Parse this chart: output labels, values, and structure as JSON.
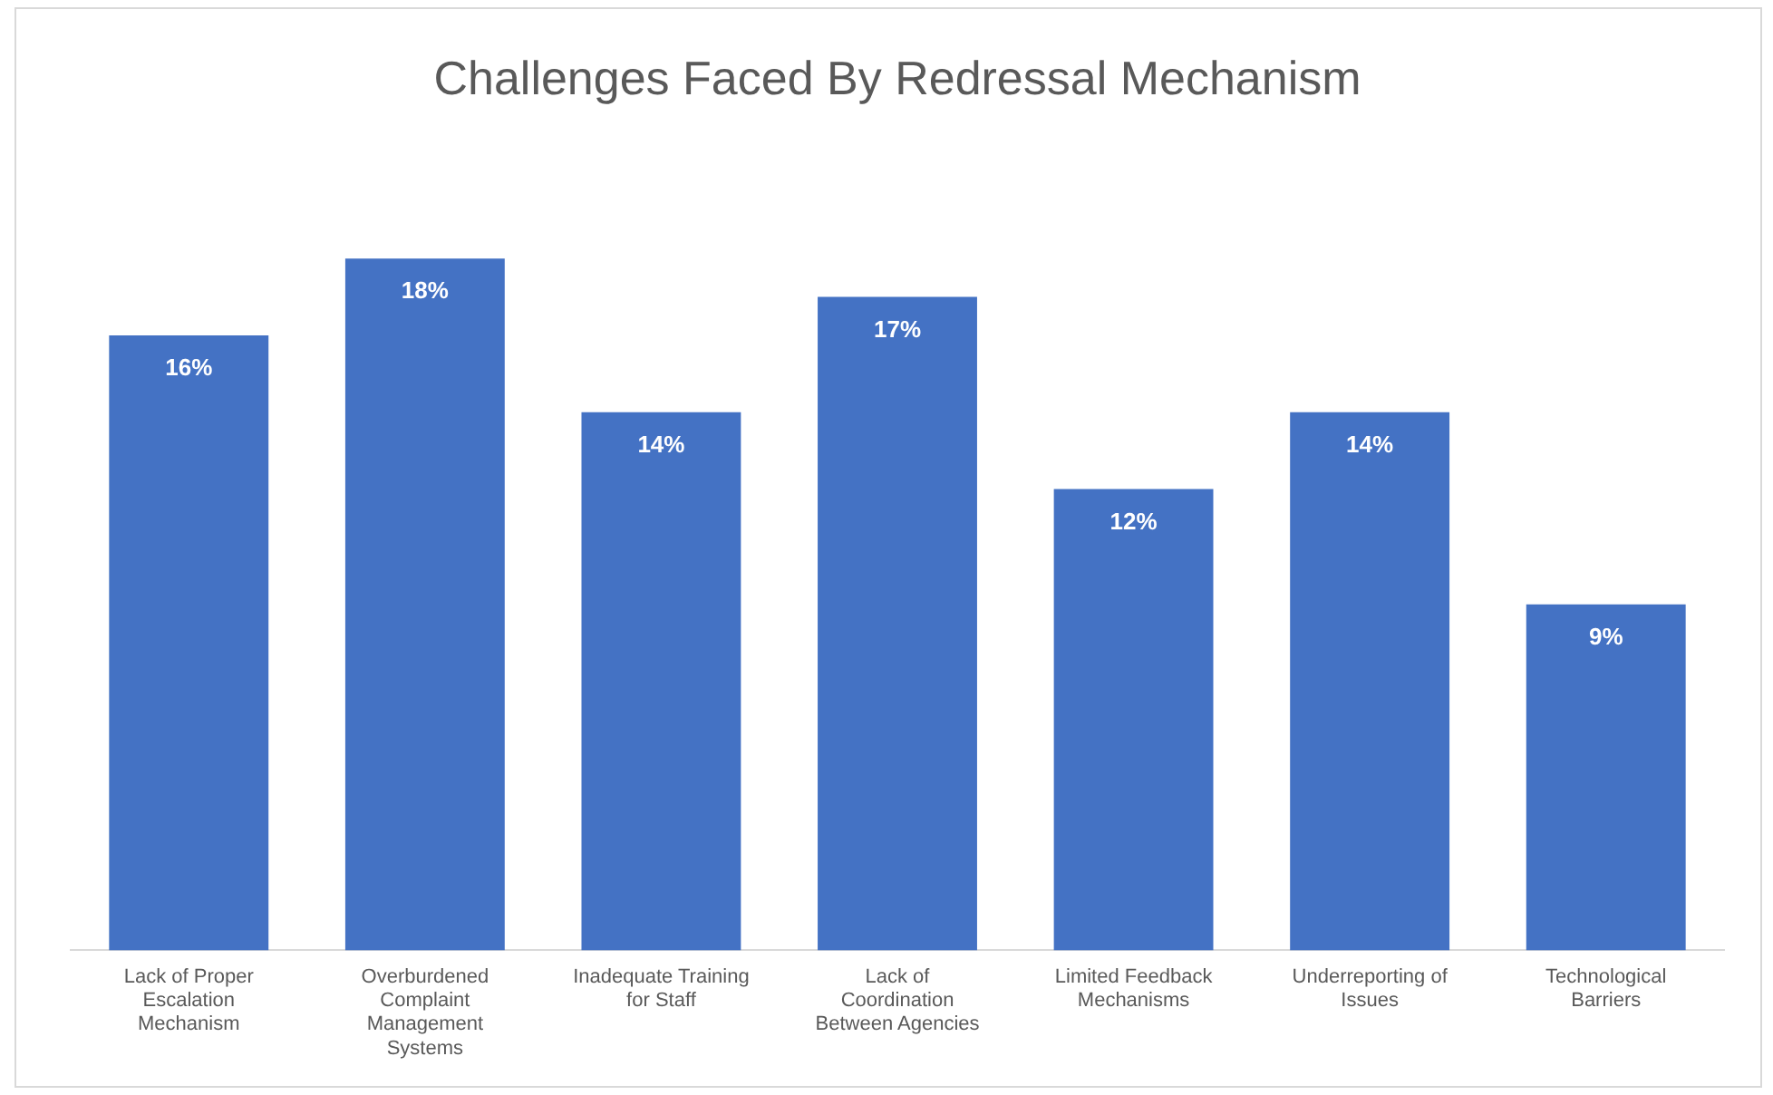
{
  "chart_data": {
    "type": "bar",
    "title": "Challenges Faced By Redressal Mechanism",
    "categories": [
      "Lack of Proper Escalation Mechanism",
      "Overburdened Complaint Management Systems",
      "Inadequate Training for Staff",
      "Lack of Coordination Between Agencies",
      "Limited Feedback Mechanisms",
      "Underreporting of Issues",
      "Technological Barriers"
    ],
    "values": [
      16,
      18,
      14,
      17,
      12,
      14,
      9
    ],
    "value_labels": [
      "16%",
      "18%",
      "14%",
      "17%",
      "12%",
      "14%",
      "9%"
    ],
    "color": "#4472c4",
    "grid": false,
    "legend": false
  }
}
